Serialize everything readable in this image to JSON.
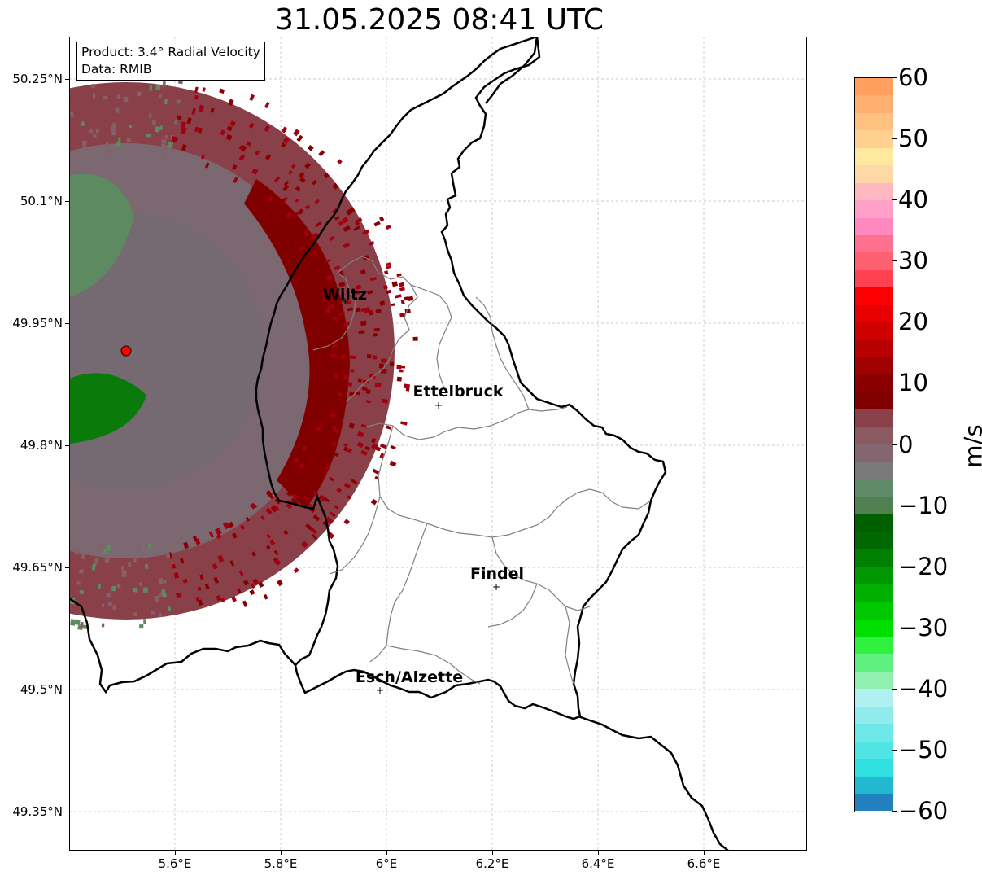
{
  "title": "31.05.2025 08:41 UTC",
  "info": {
    "product": "Product: 3.4° Radial Velocity",
    "data": "Data: RMIB"
  },
  "lat_labels": [
    "50.25°N",
    "50.1°N",
    "49.95°N",
    "49.8°N",
    "49.65°N",
    "49.5°N",
    "49.35°N"
  ],
  "lon_labels": [
    "5.6°E",
    "5.8°E",
    "6°E",
    "6.2°E",
    "6.4°E",
    "6.6°E"
  ],
  "cities": [
    {
      "name": "Wiltz"
    },
    {
      "name": "Ettelbruck"
    },
    {
      "name": "Findel"
    },
    {
      "name": "Esch/Alzette"
    }
  ],
  "colorbar": {
    "unit": "m/s",
    "min": -60,
    "max": 60,
    "tick_labels": [
      "60",
      "50",
      "40",
      "30",
      "20",
      "10",
      "0",
      "−10",
      "−20",
      "−30",
      "−40",
      "−50",
      "−60"
    ],
    "colors": [
      "#2080c0",
      "#22b8d0",
      "#30e0e0",
      "#50e4e4",
      "#6ee8e8",
      "#90ecec",
      "#b0f0f0",
      "#90f0b0",
      "#60f080",
      "#30f040",
      "#00e000",
      "#00c800",
      "#00b000",
      "#009800",
      "#008000",
      "#006800",
      "#006000",
      "#508050",
      "#608a68",
      "#7a7a7a",
      "#846670",
      "#8a5a60",
      "#8a4048",
      "#800000",
      "#8a0000",
      "#a00000",
      "#b80000",
      "#d00000",
      "#e80000",
      "#ff0000",
      "#ff4050",
      "#ff6070",
      "#ff7090",
      "#ff88c0",
      "#ffa0c8",
      "#ffb8c0",
      "#ffd8a8",
      "#ffe8a0",
      "#ffd090",
      "#ffc080",
      "#ffb070",
      "#ffa060"
    ]
  },
  "radar": {
    "site_color": "#ff0000"
  }
}
